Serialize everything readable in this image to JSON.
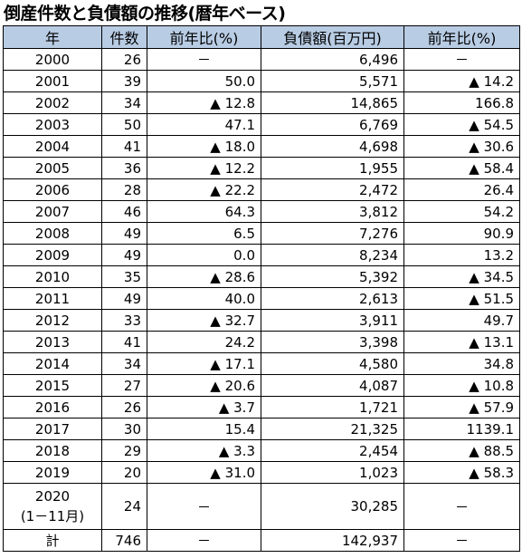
{
  "title": "倒産件数と負債額の推移(暦年ベース)",
  "headers": [
    "年",
    "件数",
    "前年比(%)",
    "負債額(百万円)",
    "前年比(%)"
  ],
  "rows": [
    {
      "year": "2000",
      "count": "26",
      "count_yoy": "－",
      "debt": "6,496",
      "debt_yoy": "－"
    },
    {
      "year": "2001",
      "count": "39",
      "count_yoy": "50.0",
      "debt": "5,571",
      "debt_yoy": "▲ 14.2"
    },
    {
      "year": "2002",
      "count": "34",
      "count_yoy": "▲ 12.8",
      "debt": "14,865",
      "debt_yoy": "166.8"
    },
    {
      "year": "2003",
      "count": "50",
      "count_yoy": "47.1",
      "debt": "6,769",
      "debt_yoy": "▲ 54.5"
    },
    {
      "year": "2004",
      "count": "41",
      "count_yoy": "▲ 18.0",
      "debt": "4,698",
      "debt_yoy": "▲ 30.6"
    },
    {
      "year": "2005",
      "count": "36",
      "count_yoy": "▲ 12.2",
      "debt": "1,955",
      "debt_yoy": "▲ 58.4"
    },
    {
      "year": "2006",
      "count": "28",
      "count_yoy": "▲ 22.2",
      "debt": "2,472",
      "debt_yoy": "26.4"
    },
    {
      "year": "2007",
      "count": "46",
      "count_yoy": "64.3",
      "debt": "3,812",
      "debt_yoy": "54.2"
    },
    {
      "year": "2008",
      "count": "49",
      "count_yoy": "6.5",
      "debt": "7,276",
      "debt_yoy": "90.9"
    },
    {
      "year": "2009",
      "count": "49",
      "count_yoy": "0.0",
      "debt": "8,234",
      "debt_yoy": "13.2"
    },
    {
      "year": "2010",
      "count": "35",
      "count_yoy": "▲ 28.6",
      "debt": "5,392",
      "debt_yoy": "▲ 34.5"
    },
    {
      "year": "2011",
      "count": "49",
      "count_yoy": "40.0",
      "debt": "2,613",
      "debt_yoy": "▲ 51.5"
    },
    {
      "year": "2012",
      "count": "33",
      "count_yoy": "▲ 32.7",
      "debt": "3,911",
      "debt_yoy": "49.7"
    },
    {
      "year": "2013",
      "count": "41",
      "count_yoy": "24.2",
      "debt": "3,398",
      "debt_yoy": "▲ 13.1"
    },
    {
      "year": "2014",
      "count": "34",
      "count_yoy": "▲ 17.1",
      "debt": "4,580",
      "debt_yoy": "34.8"
    },
    {
      "year": "2015",
      "count": "27",
      "count_yoy": "▲ 20.6",
      "debt": "4,087",
      "debt_yoy": "▲ 10.8"
    },
    {
      "year": "2016",
      "count": "26",
      "count_yoy": "▲ 3.7",
      "debt": "1,721",
      "debt_yoy": "▲ 57.9"
    },
    {
      "year": "2017",
      "count": "30",
      "count_yoy": "15.4",
      "debt": "21,325",
      "debt_yoy": "1139.1"
    },
    {
      "year": "2018",
      "count": "29",
      "count_yoy": "▲ 3.3",
      "debt": "2,454",
      "debt_yoy": "▲ 88.5"
    },
    {
      "year": "2019",
      "count": "20",
      "count_yoy": "▲ 31.0",
      "debt": "1,023",
      "debt_yoy": "▲ 58.3"
    }
  ],
  "row_2020": {
    "year_line1": "2020",
    "year_line2": "(1－11月)",
    "count": "24",
    "count_yoy": "－",
    "debt": "30,285",
    "debt_yoy": "－"
  },
  "total": {
    "label": "計",
    "count": "746",
    "count_yoy": "－",
    "debt": "142,937",
    "debt_yoy": "－"
  },
  "colors": {
    "header_bg": "#b8cce4",
    "border": "#000000"
  }
}
